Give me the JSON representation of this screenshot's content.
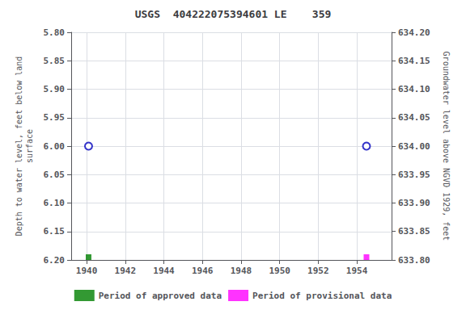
{
  "chart_data": {
    "type": "scatter",
    "title": "USGS  404222075394601 LE    359",
    "ylabel": "Depth to water level, feet below land\nsurface",
    "y2label": "Groundwater level above NGVD 1929, feet",
    "xlim": [
      1939.2,
      1955.8
    ],
    "xticks": [
      1940,
      1942,
      1944,
      1946,
      1948,
      1950,
      1952,
      1954
    ],
    "ylim": [
      6.2,
      5.8
    ],
    "yticks": [
      {
        "value": 5.8,
        "label": "5.80"
      },
      5.85,
      {
        "value": 5.9,
        "label": "5.90"
      },
      5.95,
      {
        "value": 6.0,
        "label": "6.00"
      },
      6.05,
      {
        "value": 6.1,
        "label": "6.10"
      },
      6.15,
      {
        "value": 6.2,
        "label": "6.20"
      }
    ],
    "y2lim": [
      633.8,
      634.2
    ],
    "y2ticks": [
      {
        "value": 634.2,
        "label": "634.20"
      },
      634.15,
      {
        "value": 634.1,
        "label": "634.10"
      },
      634.05,
      {
        "value": 634.0,
        "label": "634.00"
      },
      633.95,
      {
        "value": 633.9,
        "label": "633.90"
      },
      633.85,
      {
        "value": 633.8,
        "label": "633.80"
      }
    ],
    "grid": true,
    "legend": "bottom",
    "series": [
      {
        "x": [
          1940.1,
          1954.5
        ],
        "values": [
          6.0,
          6.0
        ],
        "color": "#0000bb",
        "marker": "open_circle"
      },
      {
        "name": "Period of approved data",
        "x": [
          1940.1
        ],
        "values": [
          6.195
        ],
        "color": "#008000",
        "marker": "square"
      },
      {
        "name": "Period of provisional data",
        "x": [
          1954.5
        ],
        "values": [
          6.195
        ],
        "color": "#ff00ff",
        "marker": "square"
      }
    ]
  }
}
